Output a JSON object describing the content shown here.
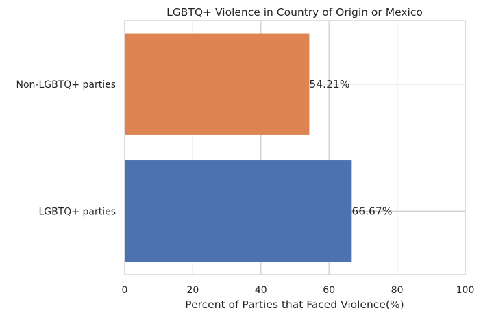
{
  "chart_data": {
    "type": "bar",
    "orientation": "horizontal",
    "title": "LGBTQ+ Violence in Country of Origin or Mexico",
    "xlabel": "Percent of Parties that Faced Violence(%)",
    "ylabel": "",
    "xlim": [
      0,
      100
    ],
    "xticks": [
      0,
      20,
      40,
      60,
      80,
      100
    ],
    "grid": true,
    "categories": [
      "LGBTQ+ parties",
      "Non-LGBTQ+ parties"
    ],
    "values": [
      66.67,
      54.21
    ],
    "value_labels": [
      "66.67%",
      "54.21%"
    ],
    "colors": [
      "#4c72b0",
      "#dd8452"
    ]
  }
}
